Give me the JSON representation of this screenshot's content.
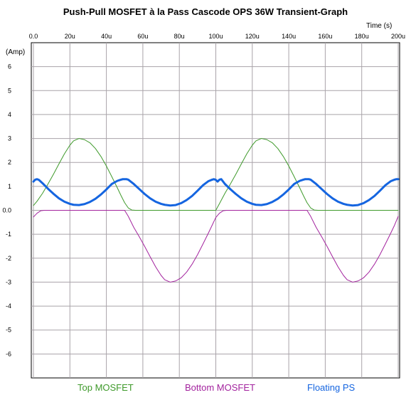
{
  "chart_data": {
    "type": "line",
    "title": "Push-Pull MOSFET à la Pass Cascode OPS 36W Transient-Graph",
    "xlabel": "Time  (s)",
    "ylabel": "(Amp)",
    "xlim": [
      0,
      200
    ],
    "ylim": [
      -7,
      7
    ],
    "x_ticks": [
      "0.0",
      "20u",
      "40u",
      "60u",
      "80u",
      "100u",
      "120u",
      "140u",
      "160u",
      "180u",
      "200u"
    ],
    "y_ticks": [
      "6",
      "5",
      "4",
      "3",
      "2",
      "1",
      "0.0",
      "-1",
      "-2",
      "-3",
      "-4",
      "-5",
      "-6"
    ],
    "grid": true,
    "legend_position": "bottom",
    "colors": {
      "top": "#3f9a2b",
      "bottom": "#a3239e",
      "floating": "#1565e0",
      "grid": "#a9a3a9"
    },
    "series": [
      {
        "name": "Top MOSFET",
        "x": [
          0,
          2,
          5,
          8,
          11,
          14,
          17,
          20,
          22,
          25,
          28,
          31,
          34,
          37,
          40,
          43,
          46,
          48,
          50,
          52,
          54,
          56,
          100,
          102,
          105,
          108,
          111,
          114,
          117,
          120,
          122,
          125,
          128,
          131,
          134,
          137,
          140,
          143,
          146,
          148,
          150,
          152,
          154,
          156,
          200
        ],
        "values": [
          0.2,
          0.38,
          0.71,
          1.1,
          1.51,
          1.94,
          2.36,
          2.72,
          2.9,
          3.0,
          2.95,
          2.82,
          2.58,
          2.25,
          1.85,
          1.4,
          0.94,
          0.62,
          0.32,
          0.1,
          0.01,
          0.0,
          0.0,
          0.28,
          0.71,
          1.1,
          1.51,
          1.94,
          2.36,
          2.72,
          2.9,
          3.0,
          2.95,
          2.82,
          2.58,
          2.25,
          1.85,
          1.4,
          0.94,
          0.62,
          0.32,
          0.1,
          0.01,
          0.0,
          0.0
        ]
      },
      {
        "name": "Bottom MOSFET",
        "x": [
          0,
          2,
          4,
          6,
          50,
          52,
          55,
          58,
          61,
          64,
          67,
          70,
          72,
          75,
          78,
          81,
          84,
          87,
          90,
          93,
          96,
          98,
          100,
          102,
          104,
          106,
          150,
          152,
          155,
          158,
          161,
          164,
          167,
          170,
          172,
          175,
          178,
          181,
          184,
          187,
          190,
          193,
          196,
          198,
          200
        ],
        "values": [
          -0.28,
          -0.12,
          -0.02,
          0.0,
          0.0,
          -0.25,
          -0.71,
          -1.1,
          -1.51,
          -1.94,
          -2.36,
          -2.72,
          -2.9,
          -3.0,
          -2.95,
          -2.82,
          -2.58,
          -2.25,
          -1.85,
          -1.4,
          -0.94,
          -0.62,
          -0.3,
          -0.12,
          -0.02,
          0.0,
          0.0,
          -0.25,
          -0.71,
          -1.1,
          -1.51,
          -1.94,
          -2.36,
          -2.72,
          -2.9,
          -3.0,
          -2.95,
          -2.82,
          -2.58,
          -2.25,
          -1.85,
          -1.4,
          -0.94,
          -0.62,
          -0.25
        ]
      },
      {
        "name": "Floating PS",
        "x": [
          0,
          1,
          2,
          3,
          5,
          8,
          11,
          14,
          17,
          20,
          22,
          25,
          28,
          31,
          34,
          37,
          40,
          43,
          46,
          48,
          49,
          50,
          51,
          52,
          53,
          55,
          58,
          61,
          64,
          67,
          70,
          72,
          75,
          78,
          81,
          84,
          87,
          90,
          93,
          96,
          98,
          99,
          100,
          101,
          102,
          103,
          105,
          108,
          111,
          114,
          117,
          120,
          122,
          125,
          128,
          131,
          134,
          137,
          140,
          143,
          146,
          148,
          149,
          150,
          151,
          152,
          153,
          155,
          158,
          161,
          164,
          167,
          170,
          172,
          175,
          178,
          181,
          184,
          187,
          190,
          193,
          196,
          198,
          199,
          200
        ],
        "values": [
          1.2,
          1.28,
          1.3,
          1.27,
          1.13,
          0.9,
          0.69,
          0.5,
          0.36,
          0.27,
          0.23,
          0.22,
          0.26,
          0.35,
          0.48,
          0.66,
          0.87,
          1.1,
          1.23,
          1.28,
          1.3,
          1.3,
          1.3,
          1.28,
          1.22,
          1.1,
          0.89,
          0.68,
          0.5,
          0.36,
          0.27,
          0.23,
          0.2,
          0.22,
          0.3,
          0.43,
          0.6,
          0.82,
          1.05,
          1.22,
          1.28,
          1.3,
          1.27,
          1.2,
          1.28,
          1.3,
          1.1,
          0.88,
          0.68,
          0.5,
          0.36,
          0.27,
          0.23,
          0.22,
          0.26,
          0.35,
          0.48,
          0.66,
          0.87,
          1.1,
          1.23,
          1.28,
          1.3,
          1.3,
          1.3,
          1.28,
          1.22,
          1.1,
          0.89,
          0.68,
          0.5,
          0.36,
          0.27,
          0.23,
          0.2,
          0.22,
          0.3,
          0.43,
          0.6,
          0.82,
          1.05,
          1.22,
          1.28,
          1.3,
          1.3
        ]
      }
    ]
  }
}
